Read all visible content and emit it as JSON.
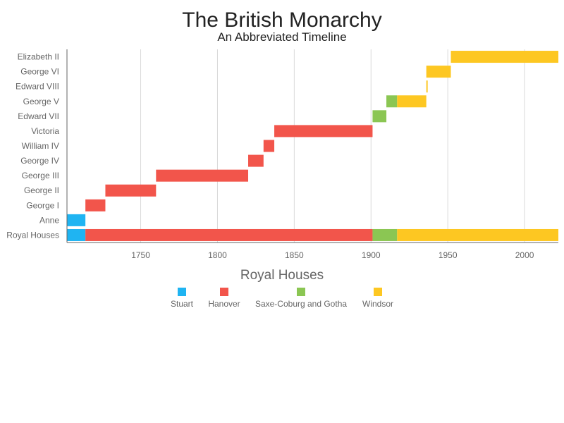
{
  "chart_data": {
    "type": "bar",
    "subtype": "timeline",
    "title": "The British Monarchy",
    "subtitle": "An Abbreviated Timeline",
    "xlim": [
      1702,
      2022
    ],
    "x_ticks": [
      1750,
      1800,
      1850,
      1900,
      1950,
      2000
    ],
    "grid": true,
    "categories": [
      "Elizabeth II",
      "George VI",
      "Edward VIII",
      "George V",
      "Edward VII",
      "Victoria",
      "William IV",
      "George IV",
      "George III",
      "George II",
      "George I",
      "Anne",
      "Royal Houses"
    ],
    "segments": [
      {
        "row": "Elizabeth II",
        "house": "Windsor",
        "start": 1952,
        "end": 2022
      },
      {
        "row": "George VI",
        "house": "Windsor",
        "start": 1936,
        "end": 1952
      },
      {
        "row": "Edward VIII",
        "house": "Windsor",
        "start": 1936,
        "end": 1936.9
      },
      {
        "row": "George V",
        "house": "Saxe-Coburg and Gotha",
        "start": 1910,
        "end": 1917
      },
      {
        "row": "George V",
        "house": "Windsor",
        "start": 1917,
        "end": 1936
      },
      {
        "row": "Edward VII",
        "house": "Saxe-Coburg and Gotha",
        "start": 1901,
        "end": 1910
      },
      {
        "row": "Victoria",
        "house": "Hanover",
        "start": 1837,
        "end": 1901
      },
      {
        "row": "William IV",
        "house": "Hanover",
        "start": 1830,
        "end": 1837
      },
      {
        "row": "George IV",
        "house": "Hanover",
        "start": 1820,
        "end": 1830
      },
      {
        "row": "George III",
        "house": "Hanover",
        "start": 1760,
        "end": 1820
      },
      {
        "row": "George II",
        "house": "Hanover",
        "start": 1727,
        "end": 1760
      },
      {
        "row": "George I",
        "house": "Hanover",
        "start": 1714,
        "end": 1727
      },
      {
        "row": "Anne",
        "house": "Stuart",
        "start": 1702,
        "end": 1714
      },
      {
        "row": "Royal Houses",
        "house": "Stuart",
        "start": 1702,
        "end": 1714
      },
      {
        "row": "Royal Houses",
        "house": "Hanover",
        "start": 1714,
        "end": 1901
      },
      {
        "row": "Royal Houses",
        "house": "Saxe-Coburg and Gotha",
        "start": 1901,
        "end": 1917
      },
      {
        "row": "Royal Houses",
        "house": "Windsor",
        "start": 1917,
        "end": 2022
      }
    ],
    "legend": {
      "title": "Royal Houses",
      "placement": "bottom",
      "items": [
        {
          "name": "Stuart",
          "color": "#1fb4f2"
        },
        {
          "name": "Hanover",
          "color": "#f2554b"
        },
        {
          "name": "Saxe-Coburg and Gotha",
          "color": "#8bc653"
        },
        {
          "name": "Windsor",
          "color": "#fdc722"
        }
      ]
    }
  }
}
